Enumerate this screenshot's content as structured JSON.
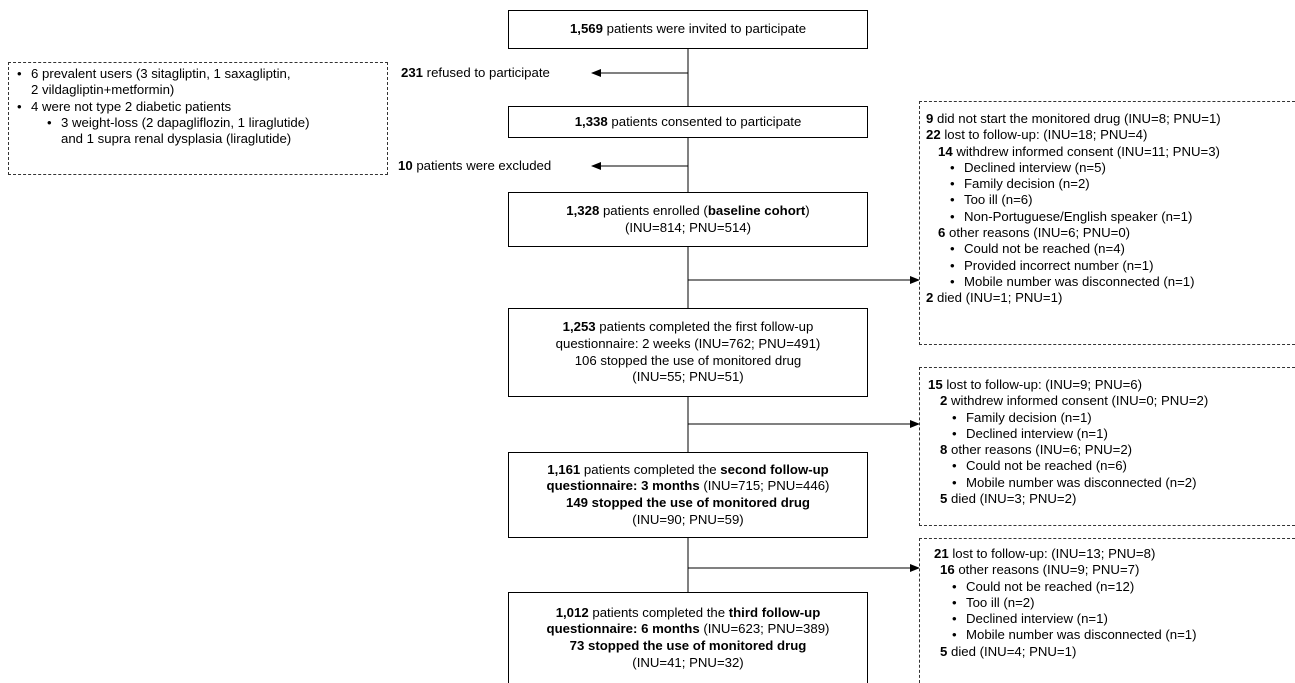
{
  "main_boxes": {
    "invited": {
      "num": "1,569",
      "text": " patients were invited to participate"
    },
    "consented": {
      "num": "1,338",
      "text": " patients consented to participate"
    },
    "enrolled": {
      "line1_num": "1,328",
      "line1_text": " patients enrolled (",
      "line1_bold": "baseline cohort",
      "line1_end": ")",
      "line2": "(INU=814; PNU=514)"
    },
    "followup1": {
      "line1_num": "1,253",
      "line1_text": " patients completed the first follow-up",
      "line2": "questionnaire: 2 weeks (INU=762; PNU=491)",
      "line3": "106 stopped the use of monitored drug",
      "line4": "(INU=55; PNU=51)"
    },
    "followup2": {
      "line1_num": "1,161",
      "line1_text": " patients completed the ",
      "line1_bold": "second follow-up",
      "line2_bold": "questionnaire: 3 months",
      "line2_text": " (INU=715; PNU=446)",
      "line3_bold": "149 stopped the use of monitored drug",
      "line4": "(INU=90; PNU=59)"
    },
    "followup3": {
      "line1_num": "1,012",
      "line1_text": " patients completed the ",
      "line1_bold": "third follow-up",
      "line2_bold": "questionnaire: 6 months",
      "line2_text": " (INU=623; PNU=389)",
      "line3_bold": "73 stopped the use of monitored drug",
      "line4": "(INU=41; PNU=32)"
    }
  },
  "side_labels": {
    "refused": {
      "num": "231",
      "text": " refused to participate"
    },
    "excluded": {
      "num": "10",
      "text": " patients were excluded"
    }
  },
  "exclusion_box": {
    "item1": "6 prevalent users (3 sitagliptin, 1 saxagliptin,",
    "item1b": "2 vildagliptin+metformin)",
    "item2": "4 were not type 2 diabetic patients",
    "item2a": "3 weight-loss (2 dapagliflozin, 1 liraglutide)",
    "item2b": "and 1 supra renal dysplasia (liraglutide)"
  },
  "dropout1": {
    "r1_num": "9",
    "r1_text": " did not start the monitored drug (INU=8; PNU=1)",
    "r2_num": "22",
    "r2_text": " lost to follow-up: (INU=18; PNU=4)",
    "r3_num": "14",
    "r3_text": " withdrew informed consent (INU=11; PNU=3)",
    "r4": "Declined interview (n=5)",
    "r5": "Family decision (n=2)",
    "r6": "Too ill (n=6)",
    "r7": "Non-Portuguese/English speaker (n=1)",
    "r8_num": "6",
    "r8_text": " other reasons (INU=6; PNU=0)",
    "r9": "Could not be reached (n=4)",
    "r10": "Provided incorrect number (n=1)",
    "r11": "Mobile number was disconnected (n=1)",
    "r12_num": "2",
    "r12_text": " died (INU=1; PNU=1)"
  },
  "dropout2": {
    "r1_num": "15",
    "r1_text": " lost to follow-up: (INU=9; PNU=6)",
    "r2_num": "2",
    "r2_text": " withdrew informed consent (INU=0; PNU=2)",
    "r3": "Family decision (n=1)",
    "r4": "Declined interview (n=1)",
    "r5_num": "8",
    "r5_text": " other reasons (INU=6; PNU=2)",
    "r6": "Could not be reached (n=6)",
    "r7": "Mobile number was disconnected (n=2)",
    "r8_num": "5",
    "r8_text": " died (INU=3; PNU=2)"
  },
  "dropout3": {
    "r1_num": "21",
    "r1_text": " lost to follow-up: (INU=13; PNU=8)",
    "r2_num": "16",
    "r2_text": " other reasons (INU=9; PNU=7)",
    "r3": "Could not be reached (n=12)",
    "r4": "Too ill (n=2)",
    "r5": "Declined interview (n=1)",
    "r6": "Mobile number was disconnected (n=1)",
    "r7_num": "5",
    "r7_text": " died (INU=4; PNU=1)"
  },
  "bullet_char": "•"
}
